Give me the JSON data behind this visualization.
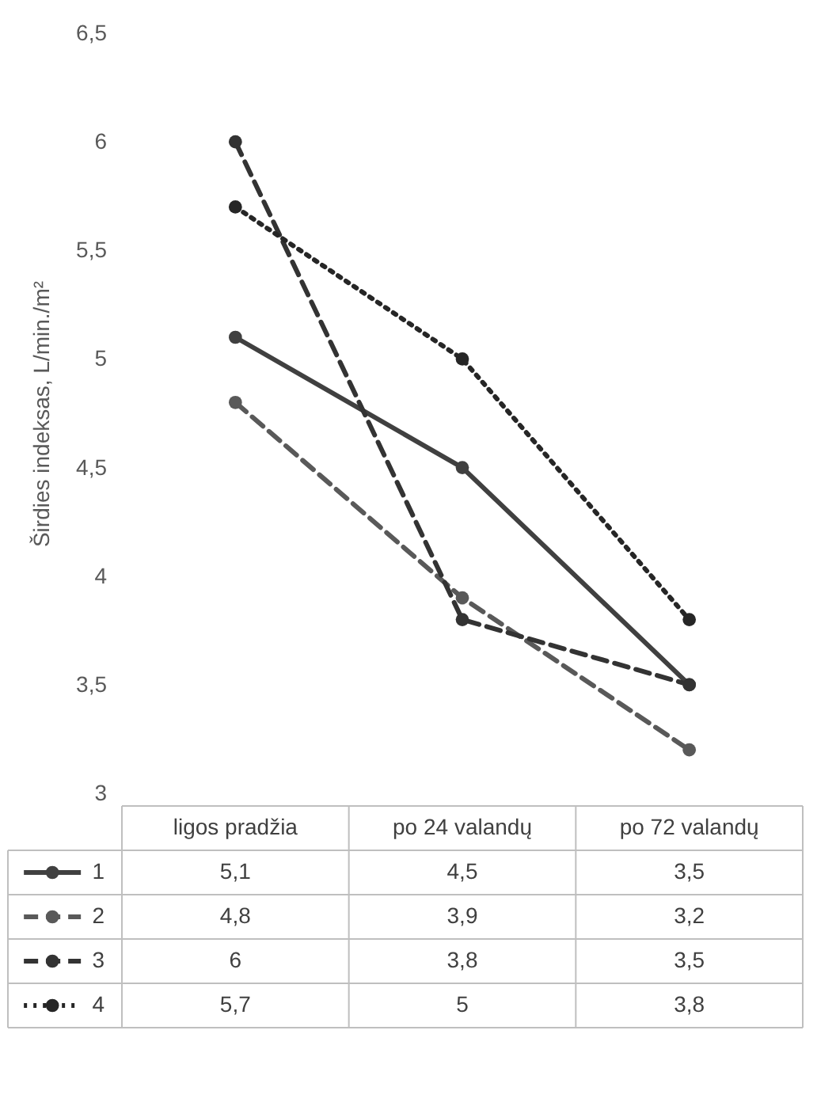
{
  "chart_data": {
    "type": "line",
    "ylabel": "Širdies indeksas, L/min./m²",
    "categories": [
      "ligos pradžia",
      "po 24 valandų",
      "po 72 valandų"
    ],
    "ylim": [
      3,
      6.5
    ],
    "yticks": [
      3,
      {
        "value": 3.5,
        "label": "3,5"
      },
      4,
      {
        "value": 4.5,
        "label": "4,5"
      },
      5,
      {
        "value": 5.5,
        "label": "5,5"
      },
      6,
      {
        "value": 6.5,
        "label": "6,5"
      }
    ],
    "grid": false,
    "legend": "bottom",
    "marker": "circle",
    "series": [
      {
        "name": "1",
        "color": "#404040",
        "line_style": "solid",
        "values": [
          5.1,
          4.5,
          3.5
        ],
        "value_labels": [
          "5,1",
          "4,5",
          "3,5"
        ]
      },
      {
        "name": "2",
        "color": "#595959",
        "line_style": "dashed",
        "values": [
          4.8,
          3.9,
          3.2
        ],
        "value_labels": [
          "4,8",
          "3,9",
          "3,2"
        ]
      },
      {
        "name": "3",
        "color": "#333333",
        "line_style": "dashed",
        "values": [
          6,
          3.8,
          3.5
        ],
        "value_labels": [
          "6",
          "3,8",
          "3,5"
        ]
      },
      {
        "name": "4",
        "color": "#262626",
        "line_style": "dotted",
        "values": [
          5.7,
          5,
          3.8
        ],
        "value_labels": [
          "5,7",
          "5",
          "3,8"
        ]
      }
    ]
  }
}
